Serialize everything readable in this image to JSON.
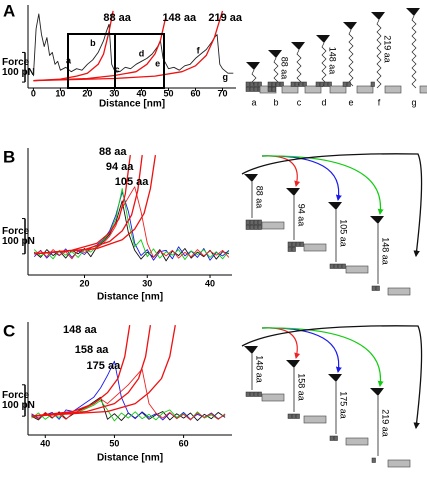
{
  "chart_data": [
    {
      "type": "line",
      "panel": "A",
      "xlabel": "Distance [nm]",
      "ylabel": "Force",
      "scale_bar": {
        "value": 100,
        "label": "100 pN"
      },
      "xlim": [
        -2,
        75
      ],
      "ylim": [
        -20,
        260
      ],
      "xticks": [
        0,
        10,
        20,
        30,
        40,
        50,
        60,
        70
      ],
      "x": [
        0,
        1,
        2,
        3,
        4,
        5,
        6,
        7,
        8,
        9,
        10,
        12,
        14,
        16,
        18,
        20,
        22,
        24,
        26,
        27,
        28,
        29,
        30,
        32,
        34,
        36,
        38,
        40,
        42,
        44,
        46,
        47,
        48,
        50,
        52,
        54,
        56,
        58,
        60,
        62,
        64,
        66,
        67,
        68,
        69,
        70,
        72,
        74
      ],
      "series": [
        {
          "color": "#222222",
          "values": [
            20,
            180,
            230,
            160,
            120,
            150,
            90,
            100,
            60,
            70,
            40,
            50,
            35,
            45,
            40,
            60,
            75,
            100,
            140,
            170,
            195,
            60,
            40,
            35,
            50,
            45,
            60,
            70,
            80,
            95,
            120,
            140,
            80,
            45,
            50,
            40,
            55,
            60,
            80,
            95,
            110,
            135,
            150,
            160,
            60,
            45,
            30,
            30
          ]
        }
      ],
      "fits": [
        {
          "color": "#ee1111",
          "x": [
            0,
            10,
            16,
            20,
            24,
            26,
            28,
            29.5
          ],
          "values": [
            5,
            10,
            20,
            30,
            60,
            95,
            170,
            240
          ]
        },
        {
          "color": "#ee1111",
          "x": [
            0,
            20,
            30,
            38,
            42,
            45,
            47,
            49
          ],
          "values": [
            5,
            12,
            22,
            35,
            60,
            95,
            140,
            220
          ]
        },
        {
          "color": "#ee1111",
          "x": [
            0,
            30,
            45,
            55,
            60,
            64,
            67,
            70
          ],
          "values": [
            5,
            12,
            20,
            35,
            55,
            90,
            150,
            240
          ]
        }
      ],
      "annotations": [
        {
          "text": "88 aa",
          "x": 31,
          "y": 215
        },
        {
          "text": "148 aa",
          "x": 54,
          "y": 215
        },
        {
          "text": "219 aa",
          "x": 71,
          "y": 215
        },
        {
          "text": "a",
          "x": 13,
          "y": 70
        },
        {
          "text": "b",
          "x": 22,
          "y": 130
        },
        {
          "text": "c",
          "x": 31,
          "y": 40
        },
        {
          "text": "d",
          "x": 40,
          "y": 95
        },
        {
          "text": "e",
          "x": 46,
          "y": 60
        },
        {
          "text": "f",
          "x": 61,
          "y": 105
        },
        {
          "text": "g",
          "x": 71,
          "y": 15
        }
      ],
      "schematic": {
        "states": [
          "a",
          "b",
          "c",
          "d",
          "e",
          "f",
          "g"
        ],
        "lengths": [
          "88 aa",
          "148 aa",
          "219 aa"
        ]
      }
    },
    {
      "type": "line",
      "panel": "B",
      "xlabel": "Distance [nm]",
      "ylabel": "Force",
      "scale_bar": {
        "value": 100,
        "label": "100 pN"
      },
      "xlim": [
        11,
        43.5
      ],
      "ylim": [
        -60,
        300
      ],
      "xticks": [
        20,
        30,
        40
      ],
      "x": [
        12,
        13,
        14,
        15,
        16,
        17,
        18,
        19,
        20,
        21,
        22,
        23,
        24,
        25,
        26,
        27,
        28,
        29,
        30,
        31,
        32,
        33,
        34,
        35,
        36,
        37,
        38,
        39,
        40,
        41,
        42,
        43
      ],
      "series": [
        {
          "color": "#111111",
          "values": [
            5,
            -10,
            12,
            -5,
            8,
            -12,
            10,
            0,
            15,
            -8,
            20,
            35,
            55,
            90,
            150,
            60,
            10,
            -15,
            5,
            -10,
            12,
            -20,
            8,
            -5,
            15,
            -12,
            5,
            -8,
            10,
            -15,
            6,
            0
          ]
        },
        {
          "color": "#1a1aee",
          "values": [
            -8,
            10,
            -12,
            6,
            -5,
            14,
            -10,
            8,
            -2,
            18,
            25,
            40,
            65,
            110,
            175,
            120,
            30,
            -5,
            12,
            -18,
            6,
            10,
            -14,
            20,
            -6,
            8,
            -10,
            15,
            -18,
            4,
            -6,
            10
          ]
        },
        {
          "color": "#11cc11",
          "values": [
            12,
            -6,
            4,
            -14,
            10,
            -4,
            6,
            -10,
            12,
            5,
            22,
            38,
            60,
            100,
            185,
            90,
            20,
            40,
            -8,
            14,
            -12,
            6,
            -4,
            12,
            -16,
            8,
            -2,
            12,
            -10,
            6,
            -14,
            8
          ]
        },
        {
          "color": "#ee2222",
          "values": [
            0,
            8,
            -8,
            12,
            -4,
            6,
            -14,
            10,
            4,
            12,
            18,
            30,
            50,
            80,
            130,
            160,
            190,
            120,
            30,
            -10,
            8,
            -6,
            10,
            -12,
            4,
            -8,
            12,
            -6,
            8,
            -4,
            10,
            -10
          ]
        }
      ],
      "fits": [
        {
          "color": "#ee1111",
          "x": [
            12,
            18,
            22,
            24,
            25.5,
            26.5,
            27.3
          ],
          "values": [
            0,
            10,
            30,
            60,
            100,
            170,
            280
          ]
        },
        {
          "color": "#ee1111",
          "x": [
            12,
            20,
            24,
            26,
            27.5,
            28.5,
            29.2
          ],
          "values": [
            0,
            12,
            35,
            65,
            110,
            180,
            280
          ]
        },
        {
          "color": "#ee1111",
          "x": [
            12,
            22,
            26,
            28,
            29.5,
            30.5,
            31.3
          ],
          "values": [
            0,
            15,
            40,
            70,
            115,
            185,
            280
          ]
        }
      ],
      "annotations": [
        {
          "text": "88 aa",
          "x": 24.5,
          "y": 289
        },
        {
          "text": "94 aa",
          "x": 25.6,
          "y": 246
        },
        {
          "text": "105 aa",
          "x": 27.5,
          "y": 204
        }
      ],
      "schematic": {
        "lengths": [
          "88 aa",
          "94 aa",
          "105 aa",
          "148 aa"
        ]
      }
    },
    {
      "type": "line",
      "panel": "C",
      "xlabel": "Distance [nm]",
      "ylabel": "Force",
      "scale_bar": {
        "value": 100,
        "label": "100 pN"
      },
      "xlim": [
        37.5,
        67
      ],
      "ylim": [
        -60,
        300
      ],
      "xticks": [
        40,
        50,
        60
      ],
      "x": [
        38,
        39,
        40,
        41,
        42,
        43,
        44,
        45,
        46,
        47,
        48,
        49,
        50,
        51,
        52,
        53,
        54,
        55,
        56,
        57,
        58,
        59,
        60,
        61,
        62,
        63,
        64,
        65,
        66
      ],
      "series": [
        {
          "color": "#111111",
          "values": [
            0,
            -12,
            10,
            -6,
            14,
            -8,
            6,
            20,
            30,
            45,
            60,
            -10,
            8,
            -14,
            10,
            -6,
            12,
            -10,
            4,
            15,
            -12,
            8,
            -6,
            10,
            -14,
            6,
            -8,
            12,
            -4
          ]
        },
        {
          "color": "#1a1aee",
          "values": [
            8,
            -6,
            4,
            12,
            -10,
            20,
            15,
            30,
            45,
            60,
            90,
            130,
            175,
            60,
            10,
            -8,
            14,
            -4,
            8,
            -12,
            10,
            -6,
            12,
            -10,
            6,
            -4,
            10,
            -8,
            4
          ]
        },
        {
          "color": "#11cc11",
          "values": [
            -6,
            10,
            -10,
            6,
            -4,
            12,
            8,
            15,
            25,
            35,
            50,
            20,
            -15,
            10,
            -6,
            14,
            -8,
            6,
            -12,
            10,
            20,
            -4,
            8,
            -12,
            14,
            -6,
            4,
            -10,
            8
          ]
        },
        {
          "color": "#ee2222",
          "values": [
            4,
            -8,
            12,
            -4,
            6,
            -10,
            10,
            18,
            28,
            40,
            55,
            40,
            60,
            80,
            100,
            125,
            150,
            40,
            10,
            -6,
            12,
            -8,
            6,
            -12,
            10,
            -4,
            8,
            -10,
            6
          ]
        }
      ],
      "fits": [
        {
          "color": "#ee1111",
          "x": [
            38,
            44,
            47,
            49,
            50.5,
            51.5,
            52.2
          ],
          "values": [
            0,
            15,
            40,
            75,
            120,
            190,
            290
          ]
        },
        {
          "color": "#ee1111",
          "x": [
            38,
            46,
            50,
            52,
            53.5,
            54.5,
            55.2
          ],
          "values": [
            0,
            15,
            40,
            75,
            120,
            190,
            290
          ]
        },
        {
          "color": "#ee1111",
          "x": [
            38,
            49,
            53,
            55,
            56.8,
            58,
            58.8
          ],
          "values": [
            0,
            15,
            40,
            75,
            120,
            190,
            290
          ]
        }
      ],
      "annotations": [
        {
          "text": "148 aa",
          "x": 45,
          "y": 275
        },
        {
          "text": "158 aa",
          "x": 46.7,
          "y": 211
        },
        {
          "text": "175 aa",
          "x": 48.4,
          "y": 160
        }
      ],
      "schematic": {
        "lengths": [
          "148 aa",
          "158 aa",
          "175 aa",
          "219 aa"
        ]
      }
    }
  ]
}
